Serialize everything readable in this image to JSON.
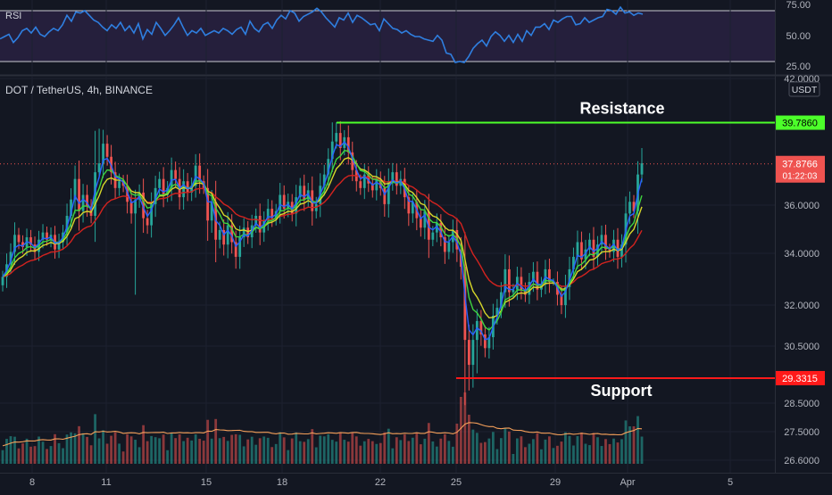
{
  "symbol_title": "DOT / TetherUS, 4h, BINANCE",
  "rsi_label": "RSI",
  "currency": "USDT",
  "colors": {
    "background": "#131722",
    "up": "#26a69a",
    "down": "#ef5350",
    "resistance": "#4cff2a",
    "support": "#ff1a1a",
    "rsi_line": "#2f7fe0",
    "rsi_band": "#2a2340",
    "ma_blue": "#2962ff",
    "ma_green": "#3fd43f",
    "ma_yellow": "#d7d72a",
    "ma_red": "#d3231f",
    "volume_ma": "#f5a05a"
  },
  "chart_data": [
    {
      "type": "line",
      "name": "rsi-panel",
      "label": "RSI",
      "ylim": [
        22,
        78
      ],
      "y_ticks": [
        "75.00",
        "50.00",
        "25.00"
      ],
      "bands": [
        30,
        70
      ],
      "x": [
        0,
        5,
        10,
        15,
        20,
        25,
        30,
        35,
        40,
        45,
        50,
        55,
        60,
        65,
        70,
        75,
        80,
        85,
        90,
        95,
        100,
        105,
        110,
        115,
        120,
        125,
        130,
        135,
        140,
        145,
        150,
        155,
        160,
        165,
        170,
        175,
        180,
        185,
        190,
        195,
        200,
        205,
        210,
        215,
        220,
        225,
        230,
        235,
        240,
        245,
        250,
        255,
        260,
        265,
        270,
        275,
        280,
        285,
        290,
        295,
        300,
        305,
        310,
        315,
        320,
        325,
        330,
        335,
        340,
        345,
        350,
        355,
        360,
        365,
        370,
        375,
        380,
        385,
        390,
        395,
        400,
        405,
        410,
        415,
        420,
        425,
        430,
        435,
        440,
        445,
        450,
        455,
        460,
        465,
        470,
        475,
        480,
        485,
        490,
        495,
        500,
        505,
        510,
        515,
        520,
        525,
        530,
        535,
        540,
        545,
        550,
        555,
        560,
        565,
        570,
        575,
        580,
        585,
        590,
        595,
        600,
        605,
        610,
        615,
        620,
        625,
        630,
        635,
        640,
        645,
        650,
        655,
        660,
        665,
        670,
        675,
        680,
        685,
        690,
        695,
        700,
        705,
        710,
        715,
        720
      ],
      "values": [
        48,
        50,
        52,
        45,
        49,
        55,
        57,
        53,
        58,
        52,
        50,
        54,
        57,
        55,
        60,
        68,
        63,
        71,
        70,
        72,
        68,
        64,
        62,
        58,
        55,
        60,
        57,
        62,
        55,
        59,
        53,
        61,
        48,
        56,
        52,
        62,
        57,
        51,
        55,
        60,
        66,
        58,
        51,
        55,
        53,
        57,
        51,
        53,
        55,
        53,
        57,
        55,
        52,
        56,
        58,
        52,
        63,
        57,
        54,
        60,
        62,
        57,
        64,
        68,
        65,
        72,
        70,
        63,
        67,
        69,
        71,
        74,
        71,
        66,
        62,
        58,
        66,
        64,
        70,
        62,
        68,
        66,
        63,
        60,
        61,
        55,
        65,
        61,
        57,
        56,
        53,
        55,
        52,
        50,
        50,
        48,
        47,
        46,
        51,
        47,
        36,
        35,
        28,
        29,
        28,
        33,
        40,
        44,
        47,
        42,
        50,
        54,
        51,
        46,
        51,
        45,
        52,
        46,
        55,
        51,
        58,
        58,
        61,
        56,
        64,
        62,
        65,
        67,
        67,
        60,
        61,
        66,
        62,
        64,
        66,
        67,
        73,
        72,
        69,
        75,
        70,
        71,
        68,
        70,
        69
      ],
      "last_value": 69
    },
    {
      "type": "candlestick",
      "name": "price-panel",
      "title": "DOT / TetherUS, 4h, BINANCE",
      "ylim": [
        26.3,
        42.6
      ],
      "scale": "log",
      "y_ticks": [
        "42.0000",
        "36.0000",
        "34.0000",
        "32.0000",
        "30.5000",
        "28.5000",
        "27.5000",
        "26.6000"
      ],
      "x_ticks": [
        "8",
        "11",
        "15",
        "18",
        "22",
        "25",
        "29",
        "Apr",
        "5"
      ],
      "candles_close": [
        33.1,
        33.6,
        34.1,
        34.8,
        34.5,
        34.3,
        34.7,
        34.4,
        34.1,
        34.6,
        34.9,
        34.6,
        34.8,
        34.2,
        34.5,
        34.9,
        35.6,
        36.3,
        37.2,
        35.8,
        36.5,
        36.0,
        35.6,
        37.5,
        37.9,
        38.8,
        38.2,
        37.5,
        36.8,
        37.1,
        36.9,
        36.2,
        35.7,
        36.3,
        36.6,
        35.5,
        35.2,
        36.1,
        36.8,
        37.2,
        36.5,
        36.8,
        37.6,
        37.2,
        36.4,
        37.1,
        36.6,
        36.9,
        37.8,
        37.1,
        36.8,
        35.4,
        36.2,
        34.6,
        35.0,
        34.4,
        35.2,
        34.5,
        33.9,
        34.7,
        35.1,
        34.7,
        35.2,
        35.6,
        34.9,
        35.4,
        35.9,
        35.5,
        35.8,
        36.5,
        35.9,
        36.2,
        35.7,
        36.4,
        36.9,
        36.3,
        36.7,
        35.8,
        36.1,
        36.9,
        37.4,
        38.1,
        38.9,
        39.3,
        38.6,
        39.1,
        38.4,
        37.6,
        37.1,
        36.8,
        37.4,
        37.0,
        36.7,
        37.2,
        36.8,
        36.1,
        37.1,
        37.5,
        36.9,
        37.2,
        36.4,
        35.7,
        36.2,
        35.5,
        35.1,
        35.8,
        34.6,
        34.9,
        35.3,
        34.7,
        34.1,
        34.5,
        35.0,
        34.2,
        33.5,
        30.7,
        29.8,
        30.7,
        31.4,
        30.9,
        30.4,
        30.8,
        31.6,
        31.9,
        32.5,
        33.4,
        32.5,
        32.6,
        33.1,
        32.6,
        32.4,
        32.9,
        33.3,
        32.6,
        32.8,
        33.4,
        32.9,
        32.9,
        32.4,
        32.0,
        32.7,
        33.4,
        33.9,
        34.5,
        33.8,
        34.2,
        34.6,
        33.9,
        34.4,
        34.8,
        34.2,
        34.1,
        34.6,
        33.9,
        34.4,
        35.7,
        36.2,
        35.8,
        37.4,
        37.9
      ],
      "resistance": {
        "label": "Resistance",
        "value": 39.786,
        "value_label": "39.7860"
      },
      "support": {
        "label": "Support",
        "value": 29.3315,
        "value_label": "29.3315"
      },
      "last_price": {
        "value": 37.8766,
        "value_label": "37.8766",
        "countdown": "01:22:03"
      },
      "moving_averages": [
        "blue",
        "green",
        "yellow",
        "red"
      ],
      "volume_ma": true
    }
  ]
}
